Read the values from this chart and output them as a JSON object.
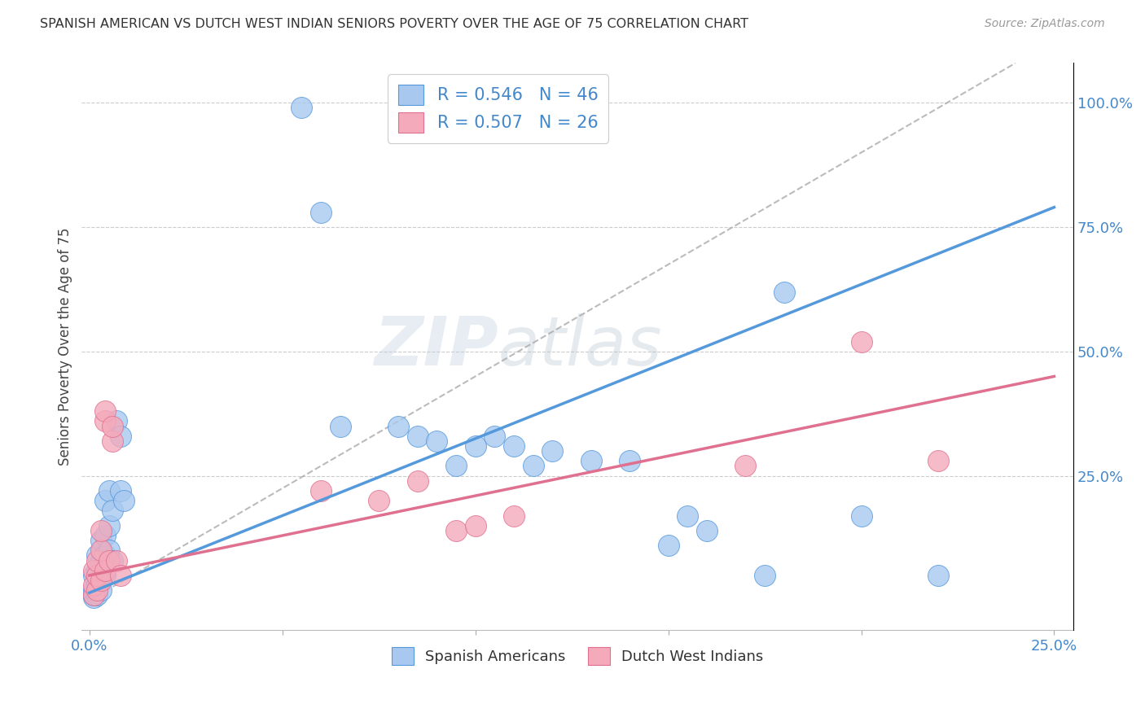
{
  "title": "SPANISH AMERICAN VS DUTCH WEST INDIAN SENIORS POVERTY OVER THE AGE OF 75 CORRELATION CHART",
  "source": "Source: ZipAtlas.com",
  "ylabel_left": "Seniors Poverty Over the Age of 75",
  "xlim": [
    -0.002,
    0.255
  ],
  "ylim": [
    -0.06,
    1.08
  ],
  "blue_color": "#A8C8F0",
  "pink_color": "#F4AABB",
  "blue_line_color": "#5599DD",
  "pink_line_color": "#E07090",
  "legend_label_blue": "Spanish Americans",
  "legend_label_pink": "Dutch West Indians",
  "blue_intercept": 0.015,
  "blue_slope": 3.1,
  "pink_intercept": 0.05,
  "pink_slope": 1.6,
  "dash_intercept": 0.0,
  "dash_slope": 4.5,
  "blue_scatter": [
    [
      0.001,
      0.005
    ],
    [
      0.001,
      0.01
    ],
    [
      0.001,
      0.02
    ],
    [
      0.001,
      0.05
    ],
    [
      0.002,
      0.01
    ],
    [
      0.002,
      0.03
    ],
    [
      0.002,
      0.06
    ],
    [
      0.002,
      0.09
    ],
    [
      0.003,
      0.02
    ],
    [
      0.003,
      0.05
    ],
    [
      0.003,
      0.08
    ],
    [
      0.003,
      0.12
    ],
    [
      0.004,
      0.05
    ],
    [
      0.004,
      0.09
    ],
    [
      0.004,
      0.13
    ],
    [
      0.004,
      0.2
    ],
    [
      0.005,
      0.1
    ],
    [
      0.005,
      0.15
    ],
    [
      0.005,
      0.22
    ],
    [
      0.006,
      0.08
    ],
    [
      0.006,
      0.18
    ],
    [
      0.007,
      0.36
    ],
    [
      0.008,
      0.22
    ],
    [
      0.008,
      0.33
    ],
    [
      0.009,
      0.2
    ],
    [
      0.055,
      0.99
    ],
    [
      0.06,
      0.78
    ],
    [
      0.065,
      0.35
    ],
    [
      0.08,
      0.35
    ],
    [
      0.085,
      0.33
    ],
    [
      0.09,
      0.32
    ],
    [
      0.095,
      0.27
    ],
    [
      0.1,
      0.31
    ],
    [
      0.105,
      0.33
    ],
    [
      0.11,
      0.31
    ],
    [
      0.115,
      0.27
    ],
    [
      0.12,
      0.3
    ],
    [
      0.13,
      0.28
    ],
    [
      0.14,
      0.28
    ],
    [
      0.15,
      0.11
    ],
    [
      0.155,
      0.17
    ],
    [
      0.16,
      0.14
    ],
    [
      0.175,
      0.05
    ],
    [
      0.18,
      0.62
    ],
    [
      0.2,
      0.17
    ],
    [
      0.22,
      0.05
    ]
  ],
  "pink_scatter": [
    [
      0.001,
      0.01
    ],
    [
      0.001,
      0.03
    ],
    [
      0.001,
      0.06
    ],
    [
      0.002,
      0.02
    ],
    [
      0.002,
      0.05
    ],
    [
      0.002,
      0.08
    ],
    [
      0.003,
      0.04
    ],
    [
      0.003,
      0.1
    ],
    [
      0.003,
      0.14
    ],
    [
      0.004,
      0.06
    ],
    [
      0.004,
      0.36
    ],
    [
      0.004,
      0.38
    ],
    [
      0.005,
      0.08
    ],
    [
      0.006,
      0.32
    ],
    [
      0.006,
      0.35
    ],
    [
      0.007,
      0.08
    ],
    [
      0.008,
      0.05
    ],
    [
      0.06,
      0.22
    ],
    [
      0.075,
      0.2
    ],
    [
      0.085,
      0.24
    ],
    [
      0.095,
      0.14
    ],
    [
      0.1,
      0.15
    ],
    [
      0.11,
      0.17
    ],
    [
      0.17,
      0.27
    ],
    [
      0.2,
      0.52
    ],
    [
      0.22,
      0.28
    ]
  ]
}
